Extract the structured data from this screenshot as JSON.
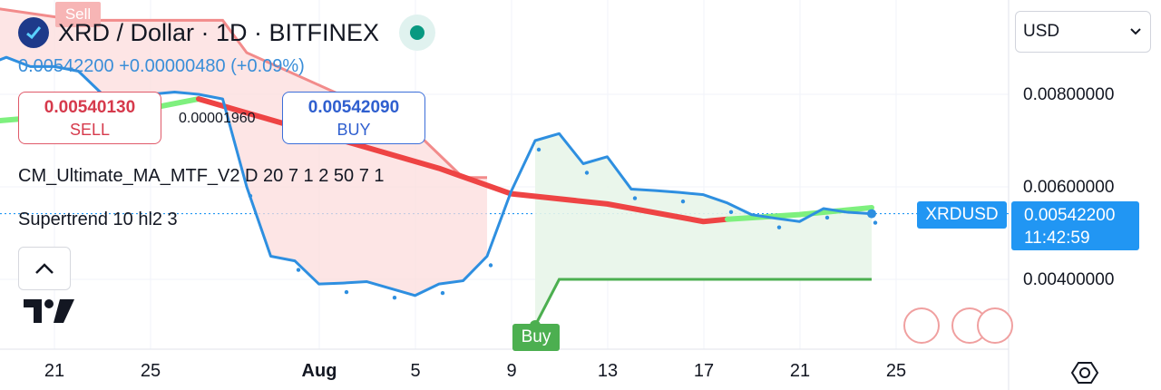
{
  "header": {
    "title": "XRD / Dollar · 1D · BITFINEX",
    "last_price": "0.00542200",
    "change": "+0.00000480 (+0.09%)"
  },
  "trade": {
    "sell_price": "0.00540130",
    "sell_label": "SELL",
    "spread": "0.00001960",
    "buy_price": "0.00542090",
    "buy_label": "BUY"
  },
  "indicators": {
    "ma": "CM_Ultimate_MA_MTF_V2 D  20  7  1  2  50  7  1",
    "supertrend": "Supertrend 10 hl2 3"
  },
  "currency": {
    "selected": "USD"
  },
  "price_axis": {
    "ticks": [
      "0.00800000",
      "0.00600000",
      "0.00400000"
    ],
    "symbol_tag": "XRDUSD",
    "current_price": "0.00542200",
    "countdown": "11:42:59"
  },
  "time_axis": {
    "ticks": [
      "21",
      "25",
      "Aug",
      "5",
      "9",
      "13",
      "17",
      "21",
      "25"
    ]
  },
  "markers": {
    "sell": "Sell",
    "buy": "Buy"
  },
  "colors": {
    "price_line": "#2e8fe0",
    "ma_down": "#ee4444",
    "ma_up": "#7ef07e",
    "supertrend_up": "#4caf50",
    "supertrend_down": "#f28b8b",
    "accent_blue": "#2196f3"
  },
  "chart_data": {
    "type": "line",
    "title": "XRD / Dollar · 1D · BITFINEX",
    "ylim": [
      0.0033,
      0.0101
    ],
    "x_ticks": [
      "21",
      "25",
      "Aug",
      "5",
      "9",
      "13",
      "17",
      "21",
      "25"
    ],
    "series": [
      {
        "name": "XRDUSD",
        "x": [
          "Jul 18",
          "Jul 19",
          "Jul 20",
          "Jul 21",
          "Jul 22",
          "Jul 23",
          "Jul 24",
          "Jul 25",
          "Jul 26",
          "Jul 27",
          "Jul 28",
          "Jul 29",
          "Jul 30",
          "Jul 31",
          "Aug 1",
          "Aug 2",
          "Aug 3",
          "Aug 4",
          "Aug 5",
          "Aug 6",
          "Aug 7",
          "Aug 8",
          "Aug 9",
          "Aug 10",
          "Aug 11",
          "Aug 12",
          "Aug 13",
          "Aug 14",
          "Aug 15",
          "Aug 16",
          "Aug 17",
          "Aug 18",
          "Aug 19",
          "Aug 20",
          "Aug 21",
          "Aug 22",
          "Aug 23",
          "Aug 24"
        ],
        "values": [
          0.0086,
          0.0088,
          0.0086,
          0.0086,
          0.0085,
          0.008,
          0.008,
          0.008,
          0.00805,
          0.008,
          0.0079,
          0.006,
          0.0045,
          0.0044,
          0.0039,
          0.00392,
          0.00395,
          0.0038,
          0.00365,
          0.0039,
          0.00397,
          0.0045,
          0.0059,
          0.007,
          0.00715,
          0.0065,
          0.00665,
          0.00595,
          0.00592,
          0.00588,
          0.00583,
          0.00565,
          0.0054,
          0.00532,
          0.00525,
          0.00553,
          0.00545,
          0.00542
        ]
      },
      {
        "name": "MA",
        "x": [
          "Jul 18",
          "Jul 25",
          "Jul 27",
          "Aug 1",
          "Aug 6",
          "Aug 9",
          "Aug 13",
          "Aug 17",
          "Aug 18",
          "Aug 21",
          "Aug 24"
        ],
        "values": [
          0.0074,
          0.0077,
          0.0079,
          0.00715,
          0.0064,
          0.00585,
          0.00563,
          0.00525,
          0.0053,
          0.0054,
          0.00555
        ]
      },
      {
        "name": "Supertrend",
        "x": [
          "Jul 18",
          "Jul 22",
          "Jul 28",
          "Jul 29",
          "Aug 4",
          "Aug 5",
          "Aug 7",
          "Aug 8",
          "Aug 10",
          "Aug 11",
          "Aug 24"
        ],
        "values": [
          0.0099,
          0.0096,
          0.0096,
          0.0089,
          0.0075,
          0.0072,
          0.0062,
          0.0062,
          0.003,
          0.004,
          0.004
        ]
      }
    ]
  }
}
